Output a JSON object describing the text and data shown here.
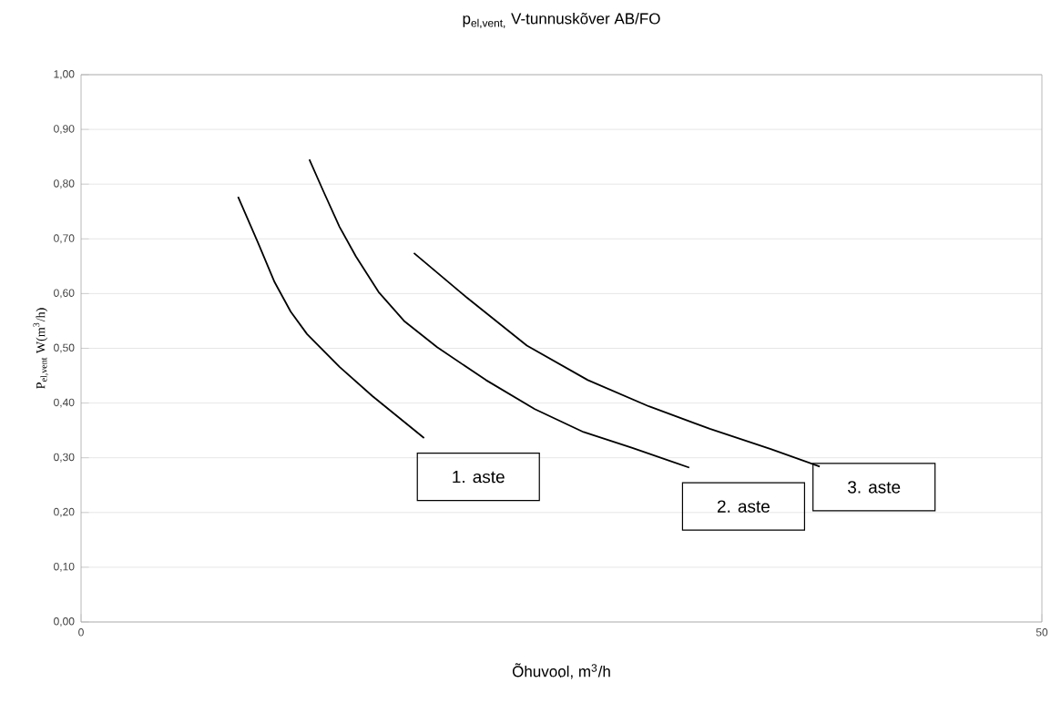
{
  "chart_data": {
    "type": "line",
    "title": "p$_{el,vent,}$ V-tunnuskõver AB/FO",
    "xlabel": "Õhuvool, m$^{3}$/h",
    "ylabel": "P$_{el,vent}$ W(m$^{3}$/h)",
    "xlim": [
      0,
      50
    ],
    "xticks": [
      0,
      50
    ],
    "ylim": [
      0,
      1
    ],
    "yticks": [
      {
        "value": 0,
        "label": "0,00"
      },
      {
        "value": 0.1,
        "label": "0,10"
      },
      {
        "value": 0.2,
        "label": "0,20"
      },
      {
        "value": 0.3,
        "label": "0,30"
      },
      {
        "value": 0.4,
        "label": "0,40"
      },
      {
        "value": 0.5,
        "label": "0,50"
      },
      {
        "value": 0.6,
        "label": "0,60"
      },
      {
        "value": 0.7,
        "label": "0,70"
      },
      {
        "value": 0.8,
        "label": "0,80"
      },
      {
        "value": 0.9,
        "label": "0,90"
      },
      {
        "value": 1,
        "label": "1,00"
      }
    ],
    "grid": "y",
    "line_style": "solid",
    "series": [
      {
        "color": "#000000",
        "x": [
          8.17,
          9.22,
          10.07,
          10.91,
          11.76,
          13.45,
          15.15,
          17.85
        ],
        "values": [
          0.777,
          0.692,
          0.621,
          0.567,
          0.526,
          0.466,
          0.413,
          0.336
        ]
      },
      {
        "color": "#000000",
        "x": [
          11.88,
          12.61,
          13.45,
          14.3,
          15.48,
          16.84,
          18.53,
          21.07,
          23.61,
          26.15,
          28.69,
          31.65
        ],
        "values": [
          0.845,
          0.787,
          0.722,
          0.668,
          0.603,
          0.549,
          0.502,
          0.442,
          0.389,
          0.347,
          0.318,
          0.282
        ]
      },
      {
        "color": "#000000",
        "x": [
          17.32,
          20.03,
          23.2,
          26.37,
          29.55,
          32.72,
          35.89,
          38.44
        ],
        "values": [
          0.674,
          0.594,
          0.505,
          0.442,
          0.394,
          0.353,
          0.316,
          0.284
        ]
      }
    ],
    "annotations": [
      "1. aste",
      "2. aste",
      "3. aste"
    ]
  }
}
